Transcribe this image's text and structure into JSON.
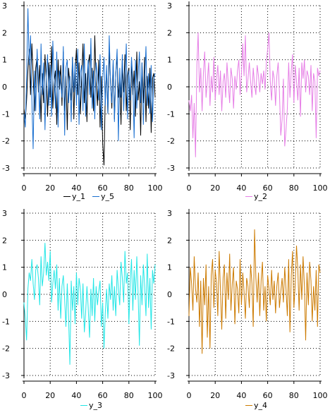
{
  "chart_data": [
    {
      "type": "line",
      "x_range": [
        0,
        100
      ],
      "ylim": [
        -3,
        3
      ],
      "xticks": [
        "0",
        "20",
        "40",
        "60",
        "80",
        "100"
      ],
      "yticks": [
        "-3",
        "-2",
        "-1",
        "0",
        "1",
        "2",
        "3"
      ],
      "grid": true,
      "legend_position": "bottom",
      "series": [
        {
          "name": "y_1",
          "color": "#000000",
          "values": [
            -0.8,
            -1.2,
            -0.5,
            0.6,
            1.4,
            -0.3,
            1.6,
            0.4,
            -0.9,
            0.7,
            1.1,
            -0.2,
            0.8,
            -1.3,
            0.5,
            -0.6,
            1.2,
            0.3,
            -1.1,
            0.9,
            -0.4,
            1.5,
            -0.8,
            0.2,
            0.6,
            -1.4,
            1.0,
            -0.1,
            0.8,
            -0.7,
            1.3,
            -0.9,
            0.4,
            -1.6,
            0.7,
            0.1,
            -0.5,
            1.1,
            -1.2,
            0.6,
            1.4,
            -0.3,
            0.9,
            -1.0,
            0.3,
            1.6,
            -0.6,
            0.5,
            -1.3,
            0.8,
            1.2,
            -0.4,
            0.7,
            -0.9,
            1.9,
            0.2,
            -0.7,
            1.0,
            -1.5,
            0.4,
            -2.1,
            -2.9,
            -0.3,
            0.6,
            -1.0,
            1.3,
            0.2,
            -0.8,
            0.9,
            -1.2,
            0.5,
            1.1,
            -0.4,
            0.3,
            -1.4,
            0.8,
            -0.2,
            1.2,
            -0.9,
            0.4,
            0.7,
            -1.6,
            1.0,
            -0.3,
            0.6,
            -1.1,
            1.3,
            -0.5,
            0.2,
            -1.8,
            0.9,
            -0.6,
            1.1,
            -1.3,
            0.4,
            -0.8,
            0.7,
            -1.7,
            0.3,
            0.5,
            -0.4
          ]
        },
        {
          "name": "y_5",
          "color": "#1a6fd0",
          "values": [
            -1.0,
            -1.5,
            0.3,
            2.9,
            0.8,
            1.9,
            -0.5,
            -2.3,
            0.6,
            -0.9,
            1.4,
            0.2,
            -1.2,
            1.6,
            -0.3,
            0.9,
            -1.6,
            0.4,
            1.2,
            -0.7,
            0.8,
            -1.1,
            1.7,
            0.3,
            -0.8,
            1.3,
            -1.5,
            0.6,
            0.1,
            -0.4,
            1.5,
            -1.8,
            0.7,
            1.0,
            -0.6,
            0.4,
            -1.3,
            1.1,
            -0.2,
            0.9,
            -0.7,
            1.4,
            -1.4,
            0.5,
            0.8,
            -0.9,
            1.6,
            -1.1,
            0.2,
            1.0,
            -0.3,
            1.8,
            -0.8,
            0.6,
            -1.2,
            0.9,
            0.4,
            -0.5,
            1.2,
            -1.6,
            0.3,
            1.1,
            -0.7,
            0.8,
            -1.0,
            1.9,
            0.1,
            -0.6,
            1.0,
            -1.3,
            0.5,
            1.4,
            -2.0,
            0.7,
            -0.4,
            1.2,
            -0.9,
            0.3,
            1.6,
            -1.2,
            0.6,
            -0.5,
            1.1,
            0.2,
            -1.9,
            1.0,
            -0.8,
            0.4,
            1.3,
            -0.6,
            0.9,
            -1.4,
            0.2,
            1.5,
            -0.7,
            0.5,
            -1.0,
            0.8,
            -1.3,
            0.3,
            0.5
          ]
        }
      ]
    },
    {
      "type": "line",
      "x_range": [
        0,
        100
      ],
      "ylim": [
        -3,
        3
      ],
      "xticks": [
        "0",
        "20",
        "40",
        "60",
        "80",
        "100"
      ],
      "yticks": [
        "-3",
        "-2",
        "-1",
        "0",
        "1",
        "2",
        "3"
      ],
      "grid": true,
      "legend_position": "bottom",
      "series": [
        {
          "name": "y_2",
          "color": "#e67ee6",
          "values": [
            -0.5,
            -0.9,
            -0.3,
            -1.9,
            -0.6,
            -2.6,
            0.8,
            2.0,
            -0.2,
            0.7,
            -0.9,
            0.5,
            1.3,
            -0.4,
            0.2,
            0.9,
            -0.7,
            0.4,
            -0.2,
            1.1,
            -0.5,
            0.3,
            0.8,
            -0.3,
            0.6,
            -0.9,
            0.2,
            0.5,
            -0.4,
            0.9,
            0.1,
            -0.6,
            0.7,
            0.3,
            -0.8,
            0.4,
            -0.1,
            0.6,
            1.0,
            -0.3,
            0.5,
            1.6,
            0.4,
            1.9,
            -0.2,
            0.3,
            0.9,
            0.2,
            -0.4,
            0.7,
            0.1,
            -0.3,
            0.8,
            0.4,
            -0.2,
            0.5,
            0.1,
            0.6,
            -0.1,
            0.9,
            1.4,
            2.0,
            0.2,
            -0.5,
            0.6,
            0.3,
            -0.7,
            0.4,
            0.9,
            -0.2,
            -1.8,
            -1.2,
            0.3,
            -2.2,
            -1.6,
            -0.8,
            0.9,
            -0.4,
            0.6,
            1.2,
            -0.6,
            0.8,
            0.2,
            -0.5,
            0.7,
            -1.1,
            0.9,
            0.3,
            1.0,
            -0.2,
            0.6,
            0.4,
            -0.3,
            0.8,
            -0.9,
            0.5,
            0.2,
            -1.9,
            0.7,
            0.4,
            0.6
          ]
        }
      ]
    },
    {
      "type": "line",
      "x_range": [
        0,
        100
      ],
      "ylim": [
        -3,
        3
      ],
      "xticks": [
        "0",
        "20",
        "40",
        "60",
        "80",
        "100"
      ],
      "yticks": [
        "-3",
        "-2",
        "-1",
        "0",
        "1",
        "2",
        "3"
      ],
      "grid": true,
      "legend_position": "bottom",
      "series": [
        {
          "name": "y_3",
          "color": "#22e6e6",
          "values": [
            -0.3,
            -0.9,
            -1.7,
            0.2,
            0.8,
            0.5,
            1.3,
            0.4,
            -0.2,
            0.9,
            1.1,
            0.6,
            -0.4,
            1.4,
            0.3,
            0.8,
            1.9,
            0.7,
            1.2,
            0.5,
            1.6,
            -0.3,
            0.4,
            0.9,
            0.2,
            1.1,
            -0.6,
            0.6,
            -0.9,
            0.3,
            0.7,
            -0.2,
            -1.2,
            0.4,
            -0.8,
            -2.6,
            0.5,
            -0.6,
            0.3,
            -1.1,
            0.8,
            -0.4,
            0.6,
            0.2,
            -0.9,
            0.4,
            -1.4,
            -0.7,
            0.3,
            -0.5,
            -1.6,
            0.2,
            -0.8,
            0.6,
            -1.0,
            0.3,
            -0.4,
            0.1,
            0.5,
            -1.2,
            -0.3,
            -2.0,
            -0.7,
            0.2,
            -0.9,
            0.4,
            -0.2,
            0.7,
            -0.6,
            0.3,
            -0.8,
            0.9,
            0.2,
            -0.4,
            1.2,
            0.6,
            -0.3,
            1.6,
            0.4,
            0.8,
            -1.1,
            0.5,
            1.3,
            -0.6,
            0.9,
            -0.2,
            1.4,
            0.1,
            -1.9,
            0.7,
            -0.4,
            1.1,
            0.3,
            -0.8,
            1.5,
            -0.5,
            0.6,
            -1.3,
            0.9,
            0.4,
            1.1
          ]
        }
      ]
    },
    {
      "type": "line",
      "x_range": [
        0,
        100
      ],
      "ylim": [
        -3,
        3
      ],
      "xticks": [
        "0",
        "20",
        "40",
        "60",
        "80",
        "100"
      ],
      "yticks": [
        "-3",
        "-2",
        "-1",
        "0",
        "1",
        "2",
        "3"
      ],
      "grid": true,
      "legend_position": "bottom",
      "series": [
        {
          "name": "y_4",
          "color": "#cc7a00",
          "values": [
            -0.8,
            1.0,
            0.4,
            -0.6,
            1.4,
            0.2,
            -0.3,
            0.8,
            -1.2,
            0.5,
            -2.2,
            0.6,
            -0.4,
            1.1,
            -1.6,
            0.3,
            -2.0,
            0.7,
            1.3,
            -0.5,
            0.9,
            0.4,
            -0.8,
            1.6,
            0.2,
            -1.3,
            0.6,
            1.1,
            -0.9,
            0.8,
            -0.2,
            1.5,
            -0.6,
            0.4,
            1.0,
            -1.1,
            0.5,
            0.2,
            -0.7,
            1.3,
            -0.4,
            0.8,
            0.1,
            -0.9,
            0.6,
            0.3,
            -0.5,
            1.1,
            0.4,
            -1.2,
            2.4,
            0.6,
            -0.3,
            0.8,
            -0.8,
            0.5,
            1.2,
            -0.6,
            0.3,
            -1.0,
            0.7,
            0.2,
            -0.4,
            0.9,
            -0.2,
            0.5,
            -0.7,
            0.3,
            0.8,
            -0.5,
            0.1,
            0.6,
            -0.3,
            1.0,
            0.2,
            -0.8,
            1.3,
            -1.4,
            0.7,
            1.6,
            -0.5,
            0.4,
            1.8,
            0.9,
            -0.6,
            1.1,
            -0.2,
            1.4,
            0.3,
            -1.7,
            0.8,
            -0.4,
            1.2,
            0.5,
            -1.0,
            0.3,
            -0.6,
            0.9,
            -1.2,
            1.1,
            0.8
          ]
        }
      ]
    }
  ]
}
